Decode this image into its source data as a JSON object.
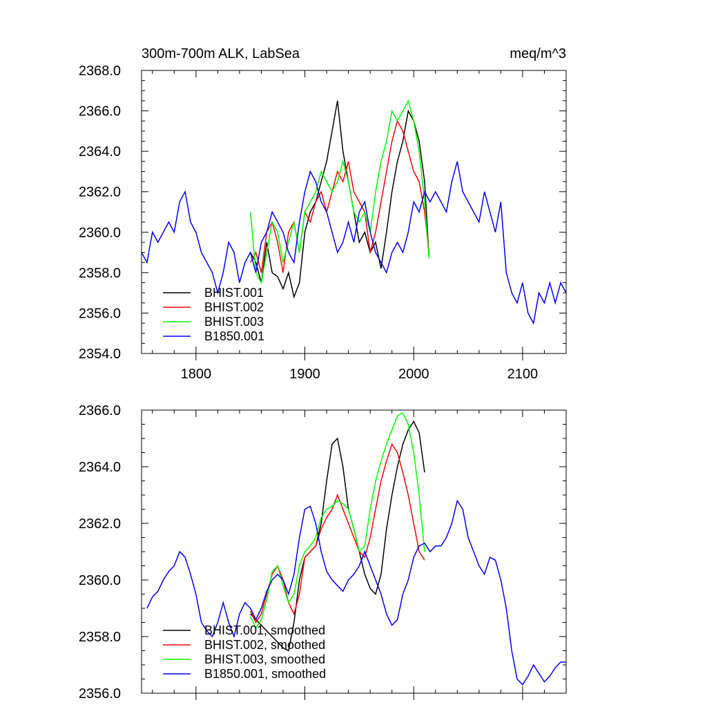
{
  "chart_data": [
    {
      "type": "line",
      "title_left": "300m-700m ALK, LabSea",
      "title_right": "meq/m^3",
      "xlim": [
        1750,
        2140
      ],
      "ylim": [
        2354,
        2368
      ],
      "xticks": [
        1800,
        1900,
        2000,
        2100
      ],
      "xtick_labels": [
        "1800",
        "1900",
        "2000",
        "2100"
      ],
      "yticks": [
        2354,
        2356,
        2358,
        2360,
        2362,
        2364,
        2366,
        2368
      ],
      "ytick_labels": [
        "2354.0",
        "2356.0",
        "2358.0",
        "2360.0",
        "2362.0",
        "2364.0",
        "2366.0",
        "2368.0"
      ],
      "series": [
        {
          "name": "BHIST.001",
          "color": "#000000",
          "x": [
            1850,
            1855,
            1860,
            1865,
            1870,
            1875,
            1880,
            1885,
            1890,
            1895,
            1900,
            1905,
            1910,
            1915,
            1920,
            1925,
            1930,
            1935,
            1940,
            1945,
            1950,
            1955,
            1960,
            1965,
            1970,
            1975,
            1980,
            1985,
            1990,
            1995,
            2000,
            2005,
            2010,
            2014
          ],
          "y": [
            2359.0,
            2358.5,
            2357.5,
            2359.5,
            2358.0,
            2357.8,
            2357.2,
            2358.0,
            2356.8,
            2357.5,
            2360.0,
            2361.0,
            2361.5,
            2362.5,
            2363.5,
            2365.0,
            2366.5,
            2364.0,
            2362.5,
            2361.0,
            2359.5,
            2360.0,
            2359.0,
            2359.5,
            2358.2,
            2360.0,
            2362.0,
            2363.5,
            2364.5,
            2366.0,
            2365.5,
            2364.5,
            2362.5,
            2358.8
          ]
        },
        {
          "name": "BHIST.002",
          "color": "#ff0000",
          "x": [
            1850,
            1855,
            1860,
            1865,
            1870,
            1875,
            1880,
            1885,
            1890,
            1895,
            1900,
            1905,
            1910,
            1915,
            1920,
            1925,
            1930,
            1935,
            1940,
            1945,
            1950,
            1955,
            1960,
            1965,
            1970,
            1975,
            1980,
            1985,
            1990,
            1995,
            2000,
            2005,
            2010,
            2014
          ],
          "y": [
            2358.5,
            2359.0,
            2358.0,
            2360.0,
            2360.5,
            2359.5,
            2358.0,
            2360.0,
            2360.5,
            2359.0,
            2361.0,
            2360.5,
            2361.5,
            2362.0,
            2361.0,
            2362.0,
            2363.0,
            2362.5,
            2363.5,
            2362.0,
            2361.5,
            2361.0,
            2359.0,
            2360.0,
            2361.5,
            2363.0,
            2364.5,
            2365.5,
            2365.0,
            2364.0,
            2363.0,
            2362.5,
            2361.0,
            2359.0
          ]
        },
        {
          "name": "BHIST.003",
          "color": "#00ff00",
          "x": [
            1850,
            1855,
            1860,
            1865,
            1870,
            1875,
            1880,
            1885,
            1890,
            1895,
            1900,
            1905,
            1910,
            1915,
            1920,
            1925,
            1930,
            1935,
            1940,
            1945,
            1950,
            1955,
            1960,
            1965,
            1970,
            1975,
            1980,
            1985,
            1990,
            1995,
            2000,
            2005,
            2010,
            2014
          ],
          "y": [
            2361.0,
            2358.0,
            2357.5,
            2359.0,
            2360.5,
            2360.0,
            2358.5,
            2359.5,
            2360.5,
            2359.0,
            2361.0,
            2361.5,
            2362.0,
            2363.0,
            2362.5,
            2362.0,
            2362.5,
            2363.5,
            2362.5,
            2361.0,
            2360.5,
            2361.0,
            2360.0,
            2362.0,
            2363.5,
            2364.5,
            2366.0,
            2365.5,
            2366.0,
            2366.5,
            2365.5,
            2364.0,
            2361.5,
            2358.7
          ]
        },
        {
          "name": "B1850.001",
          "color": "#0000ff",
          "x": [
            1750,
            1755,
            1760,
            1765,
            1770,
            1775,
            1780,
            1785,
            1790,
            1795,
            1800,
            1805,
            1810,
            1815,
            1820,
            1825,
            1830,
            1835,
            1840,
            1845,
            1850,
            1855,
            1860,
            1865,
            1870,
            1875,
            1880,
            1885,
            1890,
            1895,
            1900,
            1905,
            1910,
            1915,
            1920,
            1925,
            1930,
            1935,
            1940,
            1945,
            1950,
            1955,
            1960,
            1965,
            1970,
            1975,
            1980,
            1985,
            1990,
            1995,
            2000,
            2005,
            2010,
            2015,
            2020,
            2025,
            2030,
            2035,
            2040,
            2045,
            2050,
            2055,
            2060,
            2065,
            2070,
            2075,
            2080,
            2085,
            2090,
            2095,
            2100,
            2105,
            2110,
            2115,
            2120,
            2125,
            2130,
            2135,
            2140
          ],
          "y": [
            2359.0,
            2358.5,
            2360.0,
            2359.5,
            2360.0,
            2360.5,
            2360.0,
            2361.5,
            2362.0,
            2360.5,
            2360.0,
            2359.0,
            2358.5,
            2358.0,
            2357.0,
            2358.0,
            2359.5,
            2359.0,
            2357.5,
            2358.5,
            2359.0,
            2358.0,
            2359.5,
            2360.0,
            2361.0,
            2360.5,
            2360.0,
            2359.0,
            2358.5,
            2360.5,
            2362.0,
            2363.0,
            2362.5,
            2361.5,
            2361.0,
            2360.0,
            2359.0,
            2359.5,
            2360.5,
            2359.5,
            2361.0,
            2361.5,
            2360.0,
            2359.0,
            2358.5,
            2358.0,
            2359.0,
            2359.5,
            2359.0,
            2360.0,
            2361.5,
            2361.0,
            2362.0,
            2361.5,
            2362.0,
            2361.5,
            2361.0,
            2362.5,
            2363.5,
            2362.0,
            2361.5,
            2361.0,
            2360.5,
            2362.0,
            2361.0,
            2360.0,
            2361.5,
            2358.0,
            2357.0,
            2356.5,
            2357.5,
            2356.0,
            2355.5,
            2357.0,
            2356.5,
            2357.5,
            2356.5,
            2357.5,
            2357.0
          ]
        }
      ]
    },
    {
      "type": "line",
      "xlim": [
        1750,
        2140
      ],
      "ylim": [
        2356,
        2366
      ],
      "xticks": [
        1800,
        1900,
        2000,
        2100
      ],
      "yticks": [
        2356,
        2358,
        2360,
        2362,
        2364,
        2366
      ],
      "ytick_labels": [
        "2356.0",
        "2358.0",
        "2360.0",
        "2362.0",
        "2364.0",
        "2366.0"
      ],
      "series": [
        {
          "name": "BHIST.001, smoothed",
          "color": "#000000",
          "x": [
            1850,
            1855,
            1860,
            1865,
            1870,
            1875,
            1880,
            1885,
            1890,
            1895,
            1900,
            1905,
            1910,
            1915,
            1920,
            1925,
            1930,
            1935,
            1940,
            1945,
            1950,
            1955,
            1960,
            1965,
            1970,
            1975,
            1980,
            1985,
            1990,
            1995,
            2000,
            2005,
            2010
          ],
          "y": [
            2358.8,
            2358.6,
            2358.4,
            2358.2,
            2358.0,
            2357.8,
            2357.6,
            2357.5,
            2358.5,
            2360.0,
            2360.8,
            2361.0,
            2361.2,
            2362.0,
            2363.5,
            2364.8,
            2365.0,
            2364.0,
            2362.5,
            2361.8,
            2361.0,
            2360.2,
            2359.7,
            2359.5,
            2360.2,
            2361.8,
            2363.0,
            2364.0,
            2364.8,
            2365.3,
            2365.6,
            2365.2,
            2363.8
          ]
        },
        {
          "name": "BHIST.002, smoothed",
          "color": "#ff0000",
          "x": [
            1850,
            1855,
            1860,
            1865,
            1870,
            1875,
            1880,
            1885,
            1890,
            1895,
            1900,
            1905,
            1910,
            1915,
            1920,
            1925,
            1930,
            1935,
            1940,
            1945,
            1950,
            1955,
            1960,
            1965,
            1970,
            1975,
            1980,
            1985,
            1990,
            1995,
            2000,
            2005,
            2010
          ],
          "y": [
            2358.9,
            2358.5,
            2358.8,
            2359.5,
            2360.2,
            2360.5,
            2360.0,
            2359.2,
            2358.8,
            2359.5,
            2360.8,
            2361.0,
            2361.2,
            2361.8,
            2362.2,
            2362.5,
            2363.0,
            2362.5,
            2362.0,
            2361.5,
            2361.0,
            2360.8,
            2361.5,
            2362.5,
            2363.5,
            2364.2,
            2364.8,
            2364.5,
            2363.8,
            2363.0,
            2362.0,
            2361.0,
            2360.7
          ]
        },
        {
          "name": "BHIST.003, smoothed",
          "color": "#00ff00",
          "x": [
            1850,
            1855,
            1860,
            1865,
            1870,
            1875,
            1880,
            1885,
            1890,
            1895,
            1900,
            1905,
            1910,
            1915,
            1920,
            1925,
            1930,
            1935,
            1940,
            1945,
            1950,
            1955,
            1960,
            1965,
            1970,
            1975,
            1980,
            1985,
            1990,
            1995,
            2000,
            2005,
            2010
          ],
          "y": [
            2358.7,
            2358.3,
            2358.6,
            2359.3,
            2360.3,
            2360.5,
            2359.8,
            2359.2,
            2359.5,
            2360.5,
            2361.0,
            2361.2,
            2361.5,
            2362.2,
            2362.5,
            2362.6,
            2362.8,
            2362.7,
            2362.5,
            2361.8,
            2361.0,
            2361.2,
            2362.5,
            2363.5,
            2364.2,
            2364.8,
            2365.3,
            2365.8,
            2365.9,
            2365.5,
            2364.5,
            2363.0,
            2361.0
          ]
        },
        {
          "name": "B1850.001, smoothed",
          "color": "#0000ff",
          "x": [
            1755,
            1760,
            1765,
            1770,
            1775,
            1780,
            1785,
            1790,
            1795,
            1800,
            1805,
            1810,
            1815,
            1820,
            1825,
            1830,
            1835,
            1840,
            1845,
            1850,
            1855,
            1860,
            1865,
            1870,
            1875,
            1880,
            1885,
            1890,
            1895,
            1900,
            1905,
            1910,
            1915,
            1920,
            1925,
            1930,
            1935,
            1940,
            1945,
            1950,
            1955,
            1960,
            1965,
            1970,
            1975,
            1980,
            1985,
            1990,
            1995,
            2000,
            2005,
            2010,
            2015,
            2020,
            2025,
            2030,
            2035,
            2040,
            2045,
            2050,
            2055,
            2060,
            2065,
            2070,
            2075,
            2080,
            2085,
            2090,
            2095,
            2100,
            2105,
            2110,
            2115,
            2120,
            2125,
            2130,
            2135,
            2140
          ],
          "y": [
            2359.0,
            2359.4,
            2359.6,
            2360.0,
            2360.3,
            2360.5,
            2361.0,
            2360.8,
            2360.2,
            2359.5,
            2358.5,
            2358.2,
            2358.0,
            2358.5,
            2359.2,
            2358.5,
            2358.0,
            2358.8,
            2359.2,
            2359.0,
            2358.6,
            2359.0,
            2359.6,
            2360.0,
            2360.2,
            2360.0,
            2359.5,
            2360.2,
            2361.5,
            2362.5,
            2362.6,
            2362.0,
            2361.0,
            2360.3,
            2360.0,
            2359.8,
            2359.6,
            2360.0,
            2360.2,
            2360.5,
            2361.0,
            2360.5,
            2360.0,
            2359.5,
            2358.8,
            2358.4,
            2358.6,
            2359.5,
            2360.0,
            2360.8,
            2361.2,
            2361.3,
            2361.0,
            2361.2,
            2361.2,
            2361.5,
            2362.0,
            2362.8,
            2362.5,
            2361.5,
            2361.0,
            2360.5,
            2360.2,
            2360.8,
            2360.7,
            2360.0,
            2359.0,
            2357.5,
            2356.5,
            2356.3,
            2356.6,
            2357.0,
            2356.7,
            2356.4,
            2356.6,
            2356.9,
            2357.1,
            2357.1
          ]
        }
      ]
    }
  ]
}
